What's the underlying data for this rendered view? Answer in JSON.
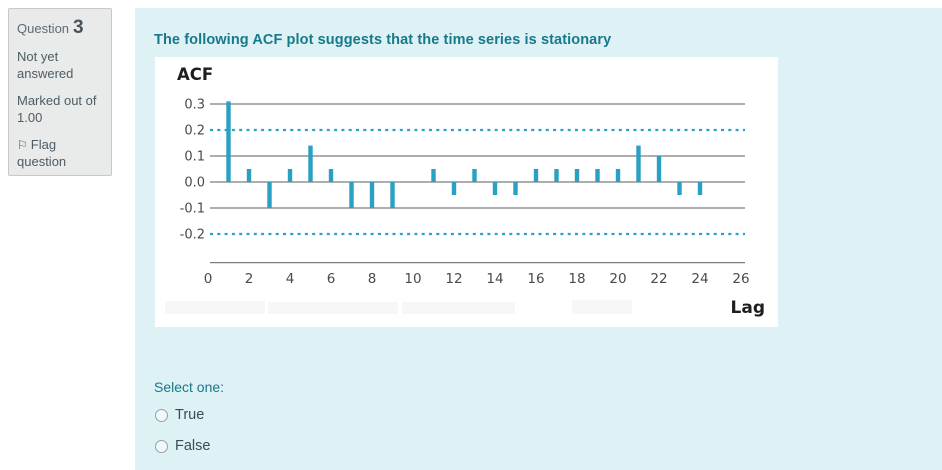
{
  "sidebar": {
    "question_label": "Question",
    "question_number": "3",
    "status_text": "Not yet answered",
    "marked_text": "Marked out of 1.00",
    "flag_icon": "⚐",
    "flag_label": "Flag question"
  },
  "question": {
    "title": "The following ACF plot suggests that the time series is stationary",
    "prompt": "Select one:",
    "options": [
      {
        "label": "True",
        "selected": false
      },
      {
        "label": "False",
        "selected": false
      }
    ]
  },
  "colors": {
    "accent_teal": "#17798c",
    "bar_color": "#2aa0c2",
    "panel_bg": "#def1f4",
    "sidebar_bg": "#e9eaea",
    "sidebar_border": "#c6c9ca",
    "grid_color": "#7e7e7e",
    "tick_text": "#4a4a4a",
    "option_text": "#3d4c54"
  },
  "chart_data": {
    "type": "bar",
    "title": "",
    "ylabel": "ACF",
    "xlabel": "Lag",
    "x": [
      1,
      2,
      3,
      4,
      5,
      6,
      7,
      8,
      9,
      10,
      11,
      12,
      13,
      14,
      15,
      16,
      17,
      18,
      19,
      20,
      21,
      22,
      23,
      24
    ],
    "values": [
      0.31,
      0.05,
      -0.1,
      0.05,
      0.14,
      0.05,
      -0.1,
      -0.1,
      -0.1,
      0.0,
      0.05,
      -0.05,
      0.05,
      -0.05,
      -0.05,
      0.05,
      0.05,
      0.05,
      0.05,
      0.05,
      0.14,
      0.1,
      -0.05,
      -0.05
    ],
    "xticks": [
      0,
      2,
      4,
      6,
      8,
      10,
      12,
      14,
      16,
      18,
      20,
      22,
      24,
      26
    ],
    "ytick_values": [
      0.3,
      0.2,
      0.1,
      0.0,
      -0.1,
      -0.2
    ],
    "ytick_labels": [
      "0.3",
      "0.2",
      "0.1",
      "0.0",
      "-0.1",
      "-0.2"
    ],
    "solid_gridlines": [
      0.3,
      0.1,
      0.0,
      -0.1
    ],
    "confidence_bounds": [
      0.2,
      -0.2
    ],
    "xlim": [
      0,
      26
    ],
    "ylim": [
      -0.31,
      0.38
    ],
    "grid": true,
    "legend": "none"
  }
}
